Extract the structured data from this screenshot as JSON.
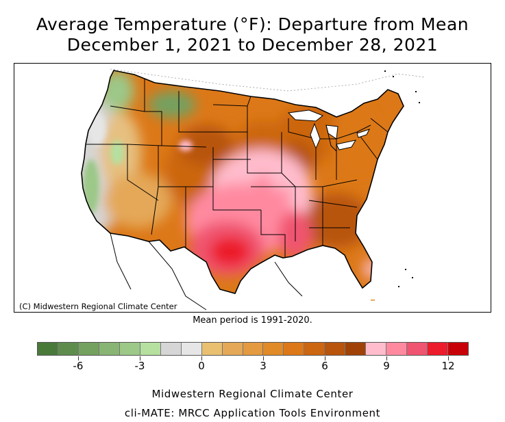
{
  "title": {
    "line1": "Average Temperature (°F): Departure from Mean",
    "line2": "December 1, 2021 to December 28, 2021"
  },
  "map": {
    "credit": "(C) Midwestern Regional Climate Center",
    "mean_period": "Mean period is 1991-2020."
  },
  "legend": {
    "colors": [
      "#4a7a3a",
      "#5e8c4c",
      "#74a060",
      "#88b474",
      "#9cc888",
      "#b5e0a0",
      "#d6d6d6",
      "#e6e6e6",
      "#e8c070",
      "#e4a858",
      "#e49a40",
      "#e08a28",
      "#dc7818",
      "#cc6610",
      "#b8540c",
      "#a04208",
      "#ffbccc",
      "#ff8aa0",
      "#f05470",
      "#ec1c2c",
      "#c80008"
    ],
    "ticks": [
      "-6",
      "-3",
      "0",
      "3",
      "6",
      "9",
      "12"
    ],
    "tick_values": [
      -6,
      -3,
      0,
      3,
      6,
      9,
      12
    ],
    "range": [
      -8,
      13
    ]
  },
  "footer": {
    "line1": "Midwestern Regional Climate Center",
    "line2": "cli-MATE: MRCC Application Tools Environment"
  }
}
